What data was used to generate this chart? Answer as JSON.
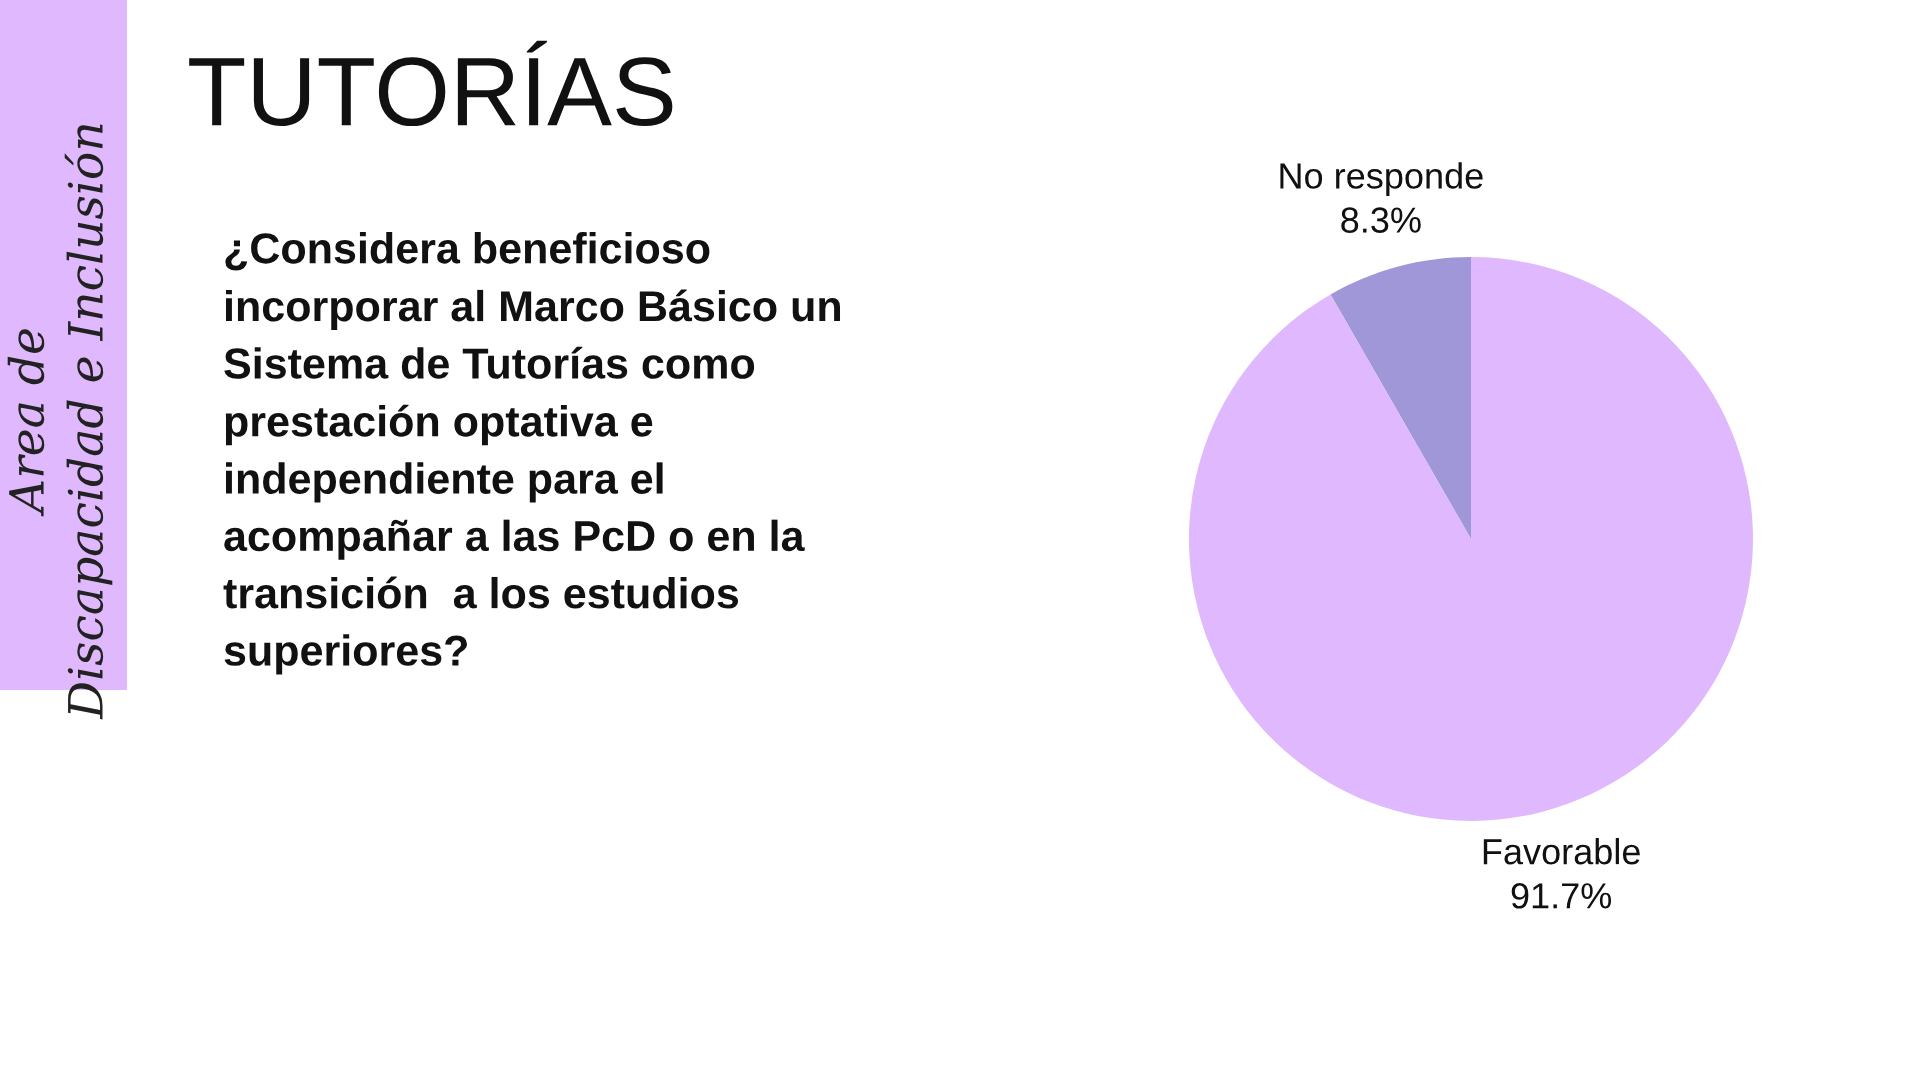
{
  "chart_data": {
    "type": "pie",
    "title": "TUTORÍAS",
    "subtitle": "¿Considera beneficioso\nincorporar al Marco Básico un\nSistema de Tutorías como\nprestación optativa e\nindependiente para el\nacompañar a las PcD o en la\ntransición  a los estudios\nsuperiores?",
    "categories": [
      "No responde",
      "Favorable"
    ],
    "values": [
      8.3,
      91.7
    ],
    "value_labels": [
      "8.3%",
      "91.7%"
    ],
    "colors": [
      "#a097d8",
      "#dfb8fd"
    ],
    "annotations": [
      "Area de\nDiscapacidad e Inclusión"
    ]
  }
}
